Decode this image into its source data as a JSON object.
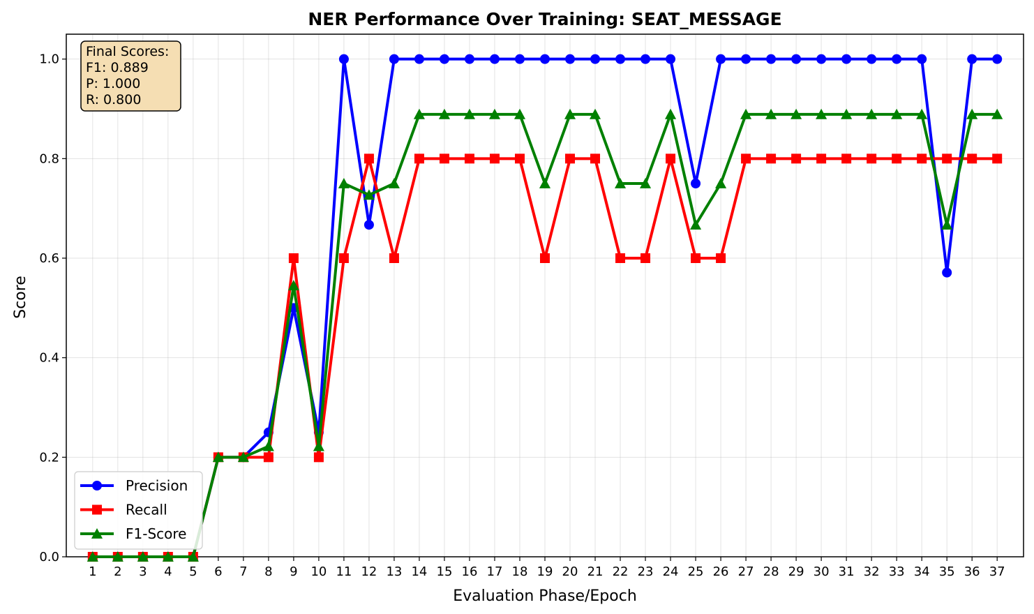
{
  "chart_data": {
    "type": "line",
    "title": "NER Performance Over Training: SEAT_MESSAGE",
    "xlabel": "Evaluation Phase/Epoch",
    "ylabel": "Score",
    "xlim": [
      -0.05,
      38.05
    ],
    "ylim": [
      0,
      1.05
    ],
    "yticks": [
      0.0,
      0.2,
      0.4,
      0.6,
      0.8,
      1.0
    ],
    "grid": true,
    "legend_position": "lower-left",
    "x": [
      1,
      2,
      3,
      4,
      5,
      6,
      7,
      8,
      9,
      10,
      11,
      12,
      13,
      14,
      15,
      16,
      17,
      18,
      19,
      20,
      21,
      22,
      23,
      24,
      25,
      26,
      27,
      28,
      29,
      30,
      31,
      32,
      33,
      34,
      35,
      36,
      37
    ],
    "series": [
      {
        "name": "Precision",
        "color": "#0000ff",
        "marker": "circle",
        "values": [
          0,
          0,
          0,
          0,
          0,
          0.2,
          0.2,
          0.25,
          0.5,
          0.25,
          1.0,
          0.667,
          1.0,
          1.0,
          1.0,
          1.0,
          1.0,
          1.0,
          1.0,
          1.0,
          1.0,
          1.0,
          1.0,
          1.0,
          0.75,
          1.0,
          1.0,
          1.0,
          1.0,
          1.0,
          1.0,
          1.0,
          1.0,
          1.0,
          0.571,
          1.0,
          1.0
        ]
      },
      {
        "name": "Recall",
        "color": "#ff0000",
        "marker": "square",
        "values": [
          0,
          0,
          0,
          0,
          0,
          0.2,
          0.2,
          0.2,
          0.6,
          0.2,
          0.6,
          0.8,
          0.6,
          0.8,
          0.8,
          0.8,
          0.8,
          0.8,
          0.6,
          0.8,
          0.8,
          0.6,
          0.6,
          0.8,
          0.6,
          0.6,
          0.8,
          0.8,
          0.8,
          0.8,
          0.8,
          0.8,
          0.8,
          0.8,
          0.8,
          0.8,
          0.8
        ]
      },
      {
        "name": "F1-Score",
        "color": "#008000",
        "marker": "triangle",
        "values": [
          0,
          0,
          0,
          0,
          0,
          0.2,
          0.2,
          0.222,
          0.545,
          0.222,
          0.75,
          0.727,
          0.75,
          0.889,
          0.889,
          0.889,
          0.889,
          0.889,
          0.75,
          0.889,
          0.889,
          0.75,
          0.75,
          0.889,
          0.667,
          0.75,
          0.889,
          0.889,
          0.889,
          0.889,
          0.889,
          0.889,
          0.889,
          0.889,
          0.667,
          0.889,
          0.889
        ]
      }
    ],
    "annotation": {
      "lines": [
        "Final Scores:",
        "F1: 0.889",
        "P: 1.000",
        "R: 0.800"
      ],
      "background": "#f5deb3"
    }
  }
}
